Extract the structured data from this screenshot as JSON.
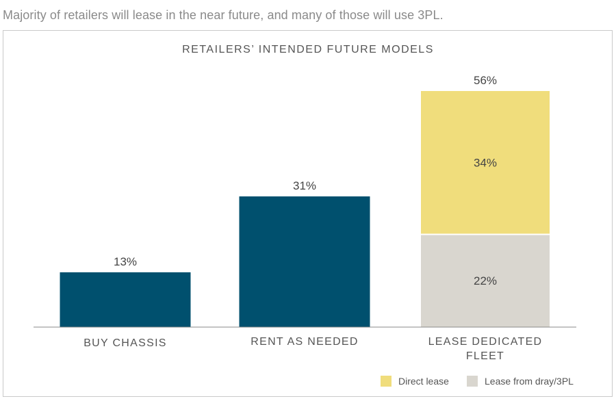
{
  "headline": "Majority of retailers will lease in the near future, and many of those will use 3PL.",
  "chart_data": {
    "type": "bar",
    "stacked": true,
    "title": "RETAILERS’ INTENDED FUTURE MODELS",
    "categories": [
      "BUY CHASSIS",
      "RENT AS NEEDED",
      "LEASE DEDICATED FLEET"
    ],
    "series": [
      {
        "name": "",
        "values": [
          13,
          31,
          null
        ],
        "color": "#00506e"
      },
      {
        "name": "Lease from dray/3PL",
        "values": [
          null,
          null,
          22
        ],
        "color": "#d9d6cf"
      },
      {
        "name": "Direct lease",
        "values": [
          null,
          null,
          34
        ],
        "color": "#f0dd7c"
      }
    ],
    "bar_labels": [
      "13%",
      "31%",
      "22%",
      "34%",
      "56%"
    ],
    "ylim": [
      0,
      62
    ],
    "grid": false,
    "legend_position": "bottom-right"
  }
}
